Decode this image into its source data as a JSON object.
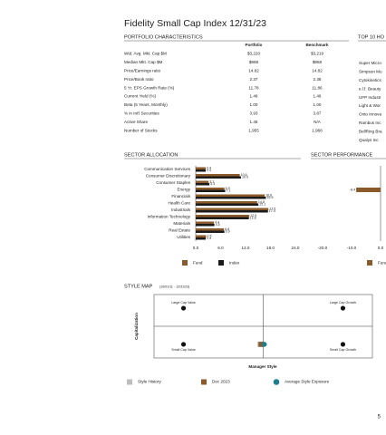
{
  "title": "Fidelity Small Cap Index 12/31/23",
  "portfolio_characteristics": {
    "heading": "PORTFOLIO CHARACTERISTICS",
    "columns": [
      "Portfolio",
      "Benchmark"
    ],
    "rows": [
      [
        "Wtd. Avg. Mkt. Cap $M",
        "$3,220",
        "$3,219"
      ],
      [
        "Median Mkt. Cap $M",
        "$958",
        "$958"
      ],
      [
        "Price/Earnings ratio",
        "14.82",
        "14.82"
      ],
      [
        "Price/Book ratio",
        "2.37",
        "2.38"
      ],
      [
        "5 Yr. EPS Growth Rate (%)",
        "11.78",
        "11.86"
      ],
      [
        "Current Yield (%)",
        "1.46",
        "1.46"
      ],
      [
        "Beta (5 Years, Monthly)",
        "1.00",
        "1.00"
      ],
      [
        "% in Int'l Securities",
        "3.93",
        "3.87"
      ],
      [
        "Active Share",
        "1.45",
        "N/A"
      ],
      [
        "Number of Stocks",
        "1,955",
        "1,966"
      ]
    ]
  },
  "top_10": {
    "heading": "TOP 10 HO",
    "items": [
      "Super Micro",
      "Simpson Mu",
      "Cytokinetics",
      "e.l.f. Beauty",
      "UFP Industr",
      "Light & Wor",
      "Onto Innova",
      "Rambus Inc",
      "BellRing Bra",
      "Qualys Inc"
    ]
  },
  "chart_data": [
    {
      "type": "bar",
      "orientation": "horizontal",
      "title": "SECTOR ALLOCATION",
      "categories": [
        "Communication Services",
        "Consumer Discretionary",
        "Consumer Staples",
        "Energy",
        "Financials",
        "Health Care",
        "Industrials",
        "Information Technology",
        "Materials",
        "Real Estate",
        "Utilities"
      ],
      "series": [
        {
          "name": "Fund",
          "color": "#8b5a2b",
          "values": [
            2.4,
            10.6,
            3.1,
            6.9,
            16.6,
            14.8,
            17.5,
            12.9,
            4.4,
            6.8,
            2.5
          ]
        },
        {
          "name": "Index",
          "color": "#1a1a1a",
          "values": [
            2.4,
            10.9,
            3.3,
            7.1,
            16.9,
            15.1,
            17.4,
            12.8,
            4.5,
            6.9,
            2.4
          ]
        }
      ],
      "xlim": [
        0,
        24
      ],
      "xticks": [
        {
          "value": 0,
          "label": "0.0"
        },
        {
          "value": 6,
          "label": "6.0"
        },
        {
          "value": 12,
          "label": "12.0"
        },
        {
          "value": 18,
          "label": "18.0"
        },
        {
          "value": 24,
          "label": "24.0"
        }
      ]
    },
    {
      "type": "bar",
      "orientation": "horizontal",
      "title": "SECTOR PERFORMANCE",
      "series": [
        {
          "name": "Fund",
          "color": "#8b5a2b",
          "values": [
            null,
            null,
            null,
            -8.4,
            null,
            null,
            null,
            null,
            null,
            null,
            null
          ]
        }
      ],
      "xlim": [
        -20,
        5
      ],
      "xticks": [
        {
          "value": -20,
          "label": "-20.0"
        },
        {
          "value": -10,
          "label": "-10.0"
        },
        {
          "value": 0,
          "label": "0.0"
        }
      ]
    },
    {
      "type": "scatter",
      "title": "STYLE MAP",
      "subtitle": "(10/01/11 - 12/31/23)",
      "xlabel": "Manager Style",
      "ylabel": "Capitalization",
      "quadrant_labels": [
        "Large Cap Value",
        "Large Cap Growth",
        "Small Cap Value",
        "Small Cap Growth"
      ],
      "xlim": [
        -1,
        1
      ],
      "ylim": [
        -1,
        1
      ],
      "series": [
        {
          "name": "Style History",
          "color": "#bdbdbd",
          "x": [
            -0.03
          ],
          "values": [
            -0.57
          ]
        },
        {
          "name": "Dec 2023",
          "color": "#8b5a2b",
          "x": [
            -0.02
          ],
          "values": [
            -0.57
          ]
        },
        {
          "name": "Average Style Exposure",
          "color": "#1f7f8c",
          "x": [
            0.01
          ],
          "values": [
            -0.57
          ]
        }
      ]
    }
  ],
  "page_number": "5"
}
